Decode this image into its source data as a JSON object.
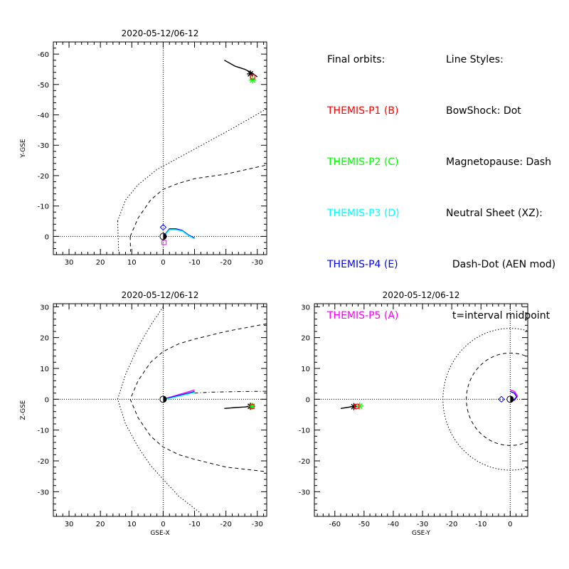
{
  "legend": {
    "orbits_title": "Final orbits:",
    "probes": [
      {
        "label": "THEMIS-P1 (B)",
        "color": "#ff0000"
      },
      {
        "label": "THEMIS-P2 (C)",
        "color": "#00ff00"
      },
      {
        "label": "THEMIS-P3 (D)",
        "color": "#00ffff"
      },
      {
        "label": "THEMIS-P4 (E)",
        "color": "#0000ff"
      },
      {
        "label": "THEMIS-P5 (A)",
        "color": "#ff00ff"
      }
    ],
    "styles_title": "Line Styles:",
    "styles": [
      "BowShock: Dot",
      "Magnetopause: Dash",
      "Neutral Sheet (XZ):",
      "  Dash-Dot (AEN mod)",
      "  t=interval midpoint"
    ]
  },
  "chart_data": [
    {
      "type": "line",
      "title": "2020-05-12/06-12",
      "xlabel": "",
      "ylabel": "Y-GSE",
      "xlim": [
        35,
        -33
      ],
      "ylim": [
        6,
        -64
      ],
      "xticks": [
        30,
        20,
        10,
        0,
        -10,
        -20,
        -30
      ],
      "yticks": [
        -60,
        -50,
        -40,
        -30,
        -20,
        -10,
        0
      ],
      "series": [
        {
          "role": "bow-shock",
          "x": [
            14.5,
            12,
            8,
            2,
            -6,
            -14,
            -22,
            -33
          ],
          "y": [
            -5,
            -12,
            -17,
            -22,
            -26.5,
            -31,
            -35.5,
            -42
          ]
        },
        {
          "role": "bow-shock",
          "x": [
            14.5,
            14.2
          ],
          "y": [
            -5,
            5
          ]
        },
        {
          "role": "magnetopause",
          "x": [
            10.5,
            8,
            4,
            0,
            -5,
            -10,
            -20,
            -33
          ],
          "y": [
            0,
            -6,
            -12,
            -15.5,
            -17.5,
            -19,
            -20.5,
            -23.5
          ]
        },
        {
          "role": "magnetopause",
          "x": [
            10.5,
            10.4
          ],
          "y": [
            0,
            5
          ]
        },
        {
          "role": "p1-p2-trace",
          "x": [
            -19.5,
            -23,
            -26,
            -28,
            -30
          ],
          "y": [
            -58,
            -56,
            -55,
            -54,
            -52.5
          ],
          "color": "#000000"
        },
        {
          "role": "p3-p4-p5-orbit",
          "x": [
            0,
            -0.5,
            -2,
            -4,
            -6,
            -8,
            -10
          ],
          "y": [
            0,
            -0.5,
            -2.5,
            -2.5,
            -2,
            -0.5,
            0.5
          ],
          "color": "#0000ff"
        },
        {
          "role": "p3-p4-p5-orbit",
          "x": [
            0,
            -0.5,
            -2,
            -4,
            -6,
            -8,
            -10
          ],
          "y": [
            0.3,
            -0.3,
            -2.2,
            -2.2,
            -1.8,
            -0.3,
            0.8
          ],
          "color": "#00ffff"
        }
      ],
      "markers": [
        {
          "shape": "star",
          "x": -27.8,
          "y": -53.5,
          "color": "#000000"
        },
        {
          "shape": "star",
          "x": -28.5,
          "y": -51.5,
          "color": "#00ff00"
        },
        {
          "shape": "square",
          "x": -28.5,
          "y": -52.5,
          "color": "#ff0000"
        },
        {
          "shape": "diamond",
          "x": 0,
          "y": -3,
          "color": "#0000ff"
        },
        {
          "shape": "square",
          "x": -0.3,
          "y": 2,
          "color": "#ff00ff"
        },
        {
          "shape": "earth",
          "x": 0,
          "y": 0
        }
      ]
    },
    {
      "type": "line",
      "title": "2020-05-12/06-12",
      "xlabel": "GSE-X",
      "ylabel": "Z-GSE",
      "xlim": [
        35,
        -33
      ],
      "ylim": [
        -38,
        31
      ],
      "xticks": [
        30,
        20,
        10,
        0,
        -10,
        -20,
        -30
      ],
      "yticks": [
        -30,
        -20,
        -10,
        0,
        10,
        20,
        30
      ],
      "series": [
        {
          "role": "bow-shock",
          "x": [
            0,
            4,
            8,
            12,
            14.5,
            12,
            8,
            4,
            0,
            -5,
            -12
          ],
          "y": [
            30,
            24,
            17,
            8,
            0,
            -8,
            -15.5,
            -21.5,
            -26,
            -31.5,
            -37
          ]
        },
        {
          "role": "magnetopause",
          "x": [
            -33,
            -20,
            -10,
            -5,
            0,
            4,
            8,
            10.5,
            8,
            4,
            0,
            -5,
            -10,
            -20,
            -33
          ],
          "y": [
            24.5,
            22,
            19.5,
            18,
            15.5,
            12,
            6,
            0,
            -6,
            -12,
            -15.5,
            -18,
            -19.5,
            -22,
            -23.5
          ]
        },
        {
          "role": "neutral-sheet",
          "x": [
            -10,
            -15,
            -20,
            -25,
            -33
          ],
          "y": [
            2,
            2.3,
            2.4,
            2.5,
            2.6
          ]
        },
        {
          "role": "p1-p2-trace",
          "x": [
            -19.5,
            -23,
            -26,
            -28
          ],
          "y": [
            -3,
            -2.7,
            -2.5,
            -2.3
          ],
          "color": "#000000"
        },
        {
          "role": "p3-p4-p5-orbit",
          "x": [
            0,
            -5,
            -10
          ],
          "y": [
            0,
            1.5,
            3
          ],
          "color": "#ff00ff"
        },
        {
          "role": "p3-p4-p5-orbit",
          "x": [
            0,
            -5,
            -10
          ],
          "y": [
            0,
            1.2,
            2.5
          ],
          "color": "#0000ff"
        },
        {
          "role": "p3-p4-p5-orbit",
          "x": [
            0,
            -5,
            -10
          ],
          "y": [
            -0.2,
            1,
            2.2
          ],
          "color": "#00ffff"
        }
      ],
      "markers": [
        {
          "shape": "star",
          "x": -27.8,
          "y": -2.3,
          "color": "#000000"
        },
        {
          "shape": "star",
          "x": -28.3,
          "y": -2.3,
          "color": "#00ff00"
        },
        {
          "shape": "square",
          "x": -28.3,
          "y": -2.3,
          "color": "#ff0000"
        },
        {
          "shape": "diamond",
          "x": 0,
          "y": 0,
          "color": "#0000ff"
        },
        {
          "shape": "earth",
          "x": 0,
          "y": 0
        }
      ]
    },
    {
      "type": "line",
      "title": "2020-05-12/06-12",
      "xlabel": "GSE-Y",
      "ylabel": "",
      "xlim": [
        -67,
        6
      ],
      "ylim": [
        -38,
        31
      ],
      "xticks": [
        -60,
        -50,
        -40,
        -30,
        -20,
        -10,
        0
      ],
      "yticks": [
        -30,
        -20,
        -10,
        0,
        10,
        20,
        30
      ],
      "series": [
        {
          "role": "bow-shock",
          "circle": true,
          "cx": 0,
          "cy": 0,
          "r": 23
        },
        {
          "role": "magnetopause",
          "circle": true,
          "cx": 0,
          "cy": 0,
          "r": 15
        },
        {
          "role": "p1-p2-trace",
          "x": [
            -58,
            -56,
            -54,
            -52.5
          ],
          "y": [
            -3,
            -2.7,
            -2.4,
            -2.2
          ],
          "color": "#000000"
        },
        {
          "role": "p3-p4-p5-orbit",
          "x": [
            0,
            1.5,
            2.5,
            1.5,
            0
          ],
          "y": [
            3,
            2.5,
            1,
            -0.3,
            -0.5
          ],
          "color": "#ff00ff"
        },
        {
          "role": "p3-p4-p5-orbit",
          "x": [
            0,
            1.4,
            2.2,
            1.3,
            0
          ],
          "y": [
            2.5,
            2,
            0.8,
            -0.2,
            -0.4
          ],
          "color": "#0000ff"
        }
      ],
      "markers": [
        {
          "shape": "star",
          "x": -53.5,
          "y": -2.4,
          "color": "#000000"
        },
        {
          "shape": "star",
          "x": -51.5,
          "y": -2.2,
          "color": "#00ff00"
        },
        {
          "shape": "square",
          "x": -52.5,
          "y": -2.3,
          "color": "#ff0000"
        },
        {
          "shape": "diamond",
          "x": -3,
          "y": 0,
          "color": "#0000ff"
        },
        {
          "shape": "earth",
          "x": 0,
          "y": 0
        }
      ]
    }
  ]
}
